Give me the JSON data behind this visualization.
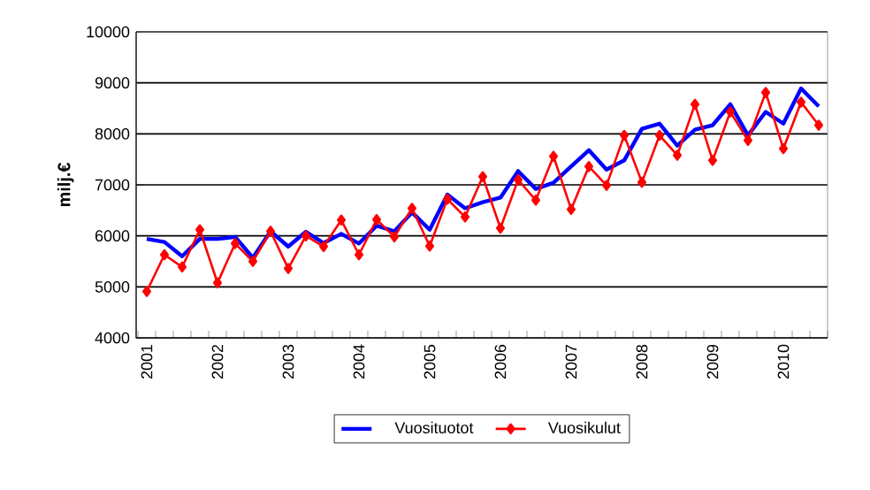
{
  "chart_data": {
    "type": "line",
    "ylabel": "milj.€",
    "categories": [
      "2001",
      null,
      null,
      null,
      "2002",
      null,
      null,
      null,
      "2003",
      null,
      null,
      null,
      "2004",
      null,
      null,
      null,
      "2005",
      null,
      null,
      null,
      "2006",
      null,
      null,
      null,
      "2007",
      null,
      null,
      null,
      "2008",
      null,
      null,
      null,
      "2009",
      null,
      null,
      null,
      "2010",
      null,
      null
    ],
    "series": [
      {
        "name": "Vuosituotot",
        "color": "#0000ff",
        "marker": "none",
        "values": [
          5940,
          5880,
          5600,
          5940,
          5940,
          5980,
          5570,
          6090,
          5790,
          6080,
          5860,
          6040,
          5850,
          6200,
          6090,
          6460,
          6120,
          6810,
          6540,
          6660,
          6750,
          7270,
          6920,
          7040,
          7360,
          7680,
          7300,
          7480,
          8100,
          8200,
          7770,
          8080,
          8170,
          8580,
          7970,
          8430,
          8200,
          8890,
          8540
        ]
      },
      {
        "name": "Vuosikulut",
        "color": "#ff0000",
        "marker": "diamond",
        "values": [
          4910,
          5630,
          5390,
          6120,
          5080,
          5850,
          5500,
          6090,
          5360,
          6000,
          5790,
          6310,
          5630,
          6320,
          5980,
          6540,
          5800,
          6720,
          6370,
          7160,
          6150,
          7100,
          6700,
          7560,
          6520,
          7360,
          6990,
          7970,
          7050,
          7970,
          7580,
          8580,
          7480,
          8430,
          7870,
          8810,
          7710,
          8620,
          8170
        ]
      }
    ],
    "ylim": [
      4000,
      10000
    ],
    "yticks": [
      4000,
      5000,
      6000,
      7000,
      8000,
      9000,
      10000
    ],
    "grid": "y",
    "legend": "bottom"
  }
}
